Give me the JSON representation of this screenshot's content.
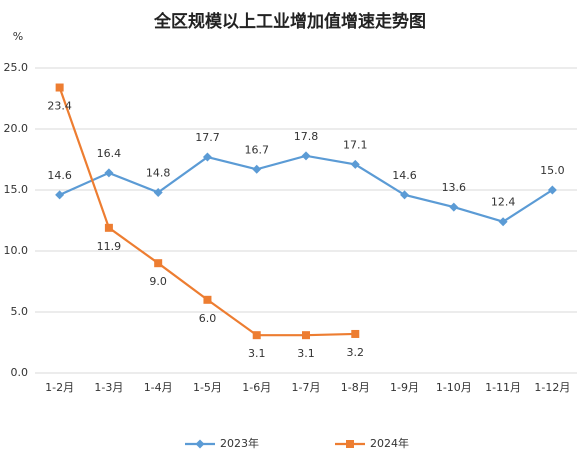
{
  "chart_data": {
    "type": "line",
    "title": "全区规模以上工业增加值增速走势图",
    "y_label": "%",
    "categories": [
      "1-2月",
      "1-3月",
      "1-4月",
      "1-5月",
      "1-6月",
      "1-7月",
      "1-8月",
      "1-9月",
      "1-10月",
      "1-11月",
      "1-12月"
    ],
    "series": [
      {
        "name": "2023年",
        "color": "#5b9bd5",
        "marker": "diamond",
        "label_position": "above",
        "values": [
          14.6,
          16.4,
          14.8,
          17.7,
          16.7,
          17.8,
          17.1,
          14.6,
          13.6,
          12.4,
          15.0
        ],
        "value_labels": [
          "14.6",
          "16.4",
          "14.8",
          "17.7",
          "16.7",
          "17.8",
          "17.1",
          "14.6",
          "13.6",
          "12.4",
          "15.0"
        ]
      },
      {
        "name": "2024年",
        "color": "#ed7d31",
        "marker": "square",
        "label_position": "below",
        "values": [
          23.4,
          11.9,
          9.0,
          6.0,
          3.1,
          3.1,
          3.2,
          null,
          null,
          null,
          null
        ],
        "value_labels": [
          "23.4",
          "11.9",
          "9.0",
          "6.0",
          "3.1",
          "3.1",
          "3.2",
          null,
          null,
          null,
          null
        ]
      }
    ],
    "ylim": [
      0,
      25
    ],
    "yticks": [
      {
        "value": 0,
        "label": "0.0"
      },
      {
        "value": 5,
        "label": "5.0"
      },
      {
        "value": 10,
        "label": "10.0"
      },
      {
        "value": 15,
        "label": "15.0"
      },
      {
        "value": 20,
        "label": "20.0"
      },
      {
        "value": 25,
        "label": "25.0"
      }
    ],
    "grid": true,
    "legend": "bottom"
  }
}
